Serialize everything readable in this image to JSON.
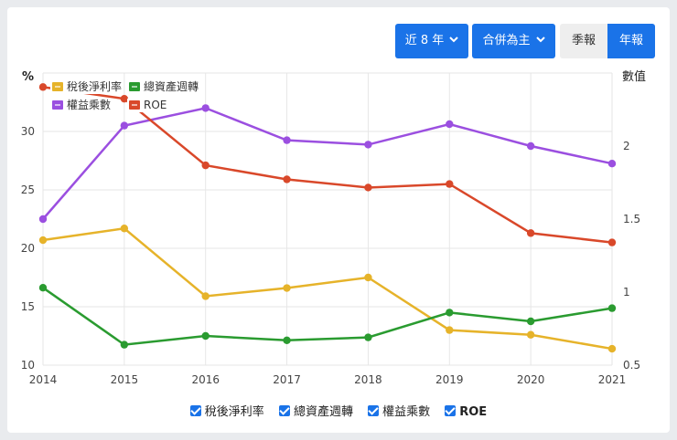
{
  "controls": {
    "period_label": "近 8 年",
    "scope_label": "合併為主",
    "quarterly_label": "季報",
    "annual_label": "年報"
  },
  "chart_data": {
    "type": "line",
    "title": "",
    "x": [
      "2014",
      "2015",
      "2016",
      "2017",
      "2018",
      "2019",
      "2020",
      "2021"
    ],
    "left_axis": {
      "label": "%",
      "ticks": [
        10,
        15,
        20,
        25,
        30
      ],
      "range": [
        10,
        35
      ]
    },
    "right_axis": {
      "label": "數值",
      "ticks": [
        0.5,
        1,
        1.5,
        2
      ],
      "range": [
        0.5,
        2.5
      ]
    },
    "grid": true,
    "legend_position": "top-left",
    "series": [
      {
        "name": "稅後淨利率",
        "axis": "left",
        "color": "#e6b32a",
        "values": [
          20.7,
          21.7,
          15.9,
          16.6,
          17.5,
          13.0,
          12.6,
          11.4
        ]
      },
      {
        "name": "總資產週轉",
        "axis": "right",
        "color": "#2a9b30",
        "values": [
          1.03,
          0.64,
          0.7,
          0.67,
          0.69,
          0.86,
          0.8,
          0.89
        ]
      },
      {
        "name": "權益乘數",
        "axis": "right",
        "color": "#9b4fe0",
        "values": [
          1.5,
          2.14,
          2.26,
          2.04,
          2.01,
          2.15,
          2.0,
          1.88
        ]
      },
      {
        "name": "ROE",
        "axis": "left",
        "color": "#d9482a",
        "values": [
          33.8,
          32.8,
          27.1,
          25.9,
          25.2,
          25.5,
          21.3,
          20.5
        ]
      }
    ]
  }
}
